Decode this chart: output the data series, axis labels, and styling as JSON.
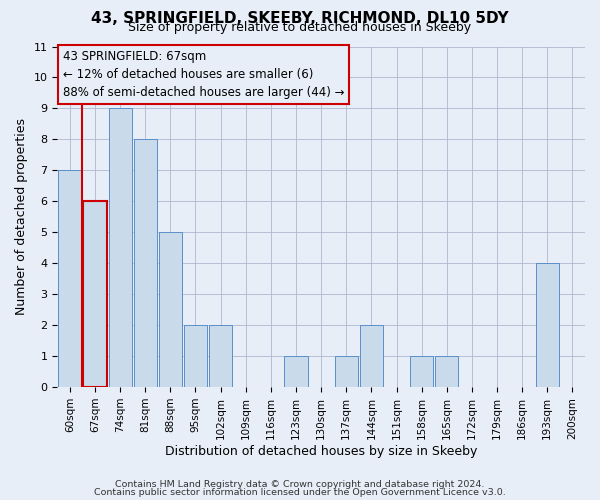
{
  "title": "43, SPRINGFIELD, SKEEBY, RICHMOND, DL10 5DY",
  "subtitle": "Size of property relative to detached houses in Skeeby",
  "xlabel": "Distribution of detached houses by size in Skeeby",
  "ylabel": "Number of detached properties",
  "footer_lines": [
    "Contains HM Land Registry data © Crown copyright and database right 2024.",
    "Contains public sector information licensed under the Open Government Licence v3.0."
  ],
  "categories": [
    "60sqm",
    "67sqm",
    "74sqm",
    "81sqm",
    "88sqm",
    "95sqm",
    "102sqm",
    "109sqm",
    "116sqm",
    "123sqm",
    "130sqm",
    "137sqm",
    "144sqm",
    "151sqm",
    "158sqm",
    "165sqm",
    "172sqm",
    "179sqm",
    "186sqm",
    "193sqm",
    "200sqm"
  ],
  "values": [
    7,
    6,
    9,
    8,
    5,
    2,
    2,
    0,
    0,
    1,
    0,
    1,
    2,
    0,
    1,
    1,
    0,
    0,
    0,
    4,
    0
  ],
  "highlight_index": 1,
  "bar_color": "#c9daea",
  "bar_edge_color": "#5b8fc9",
  "highlight_bar_edge_color": "#cc0000",
  "annotation_line1": "43 SPRINGFIELD: 67sqm",
  "annotation_line2": "← 12% of detached houses are smaller (6)",
  "annotation_line3": "88% of semi-detached houses are larger (44) →",
  "annotation_box_edge_color": "#cc0000",
  "red_line_color": "#cc0000",
  "ylim": [
    0,
    11
  ],
  "yticks": [
    0,
    1,
    2,
    3,
    4,
    5,
    6,
    7,
    8,
    9,
    10,
    11
  ],
  "grid_color": "#b0b8d0",
  "bg_color": "#e8eef8",
  "title_fontsize": 11,
  "subtitle_fontsize": 9,
  "axis_label_fontsize": 9,
  "tick_fontsize": 8,
  "annotation_fontsize": 8.5,
  "footer_fontsize": 6.8
}
